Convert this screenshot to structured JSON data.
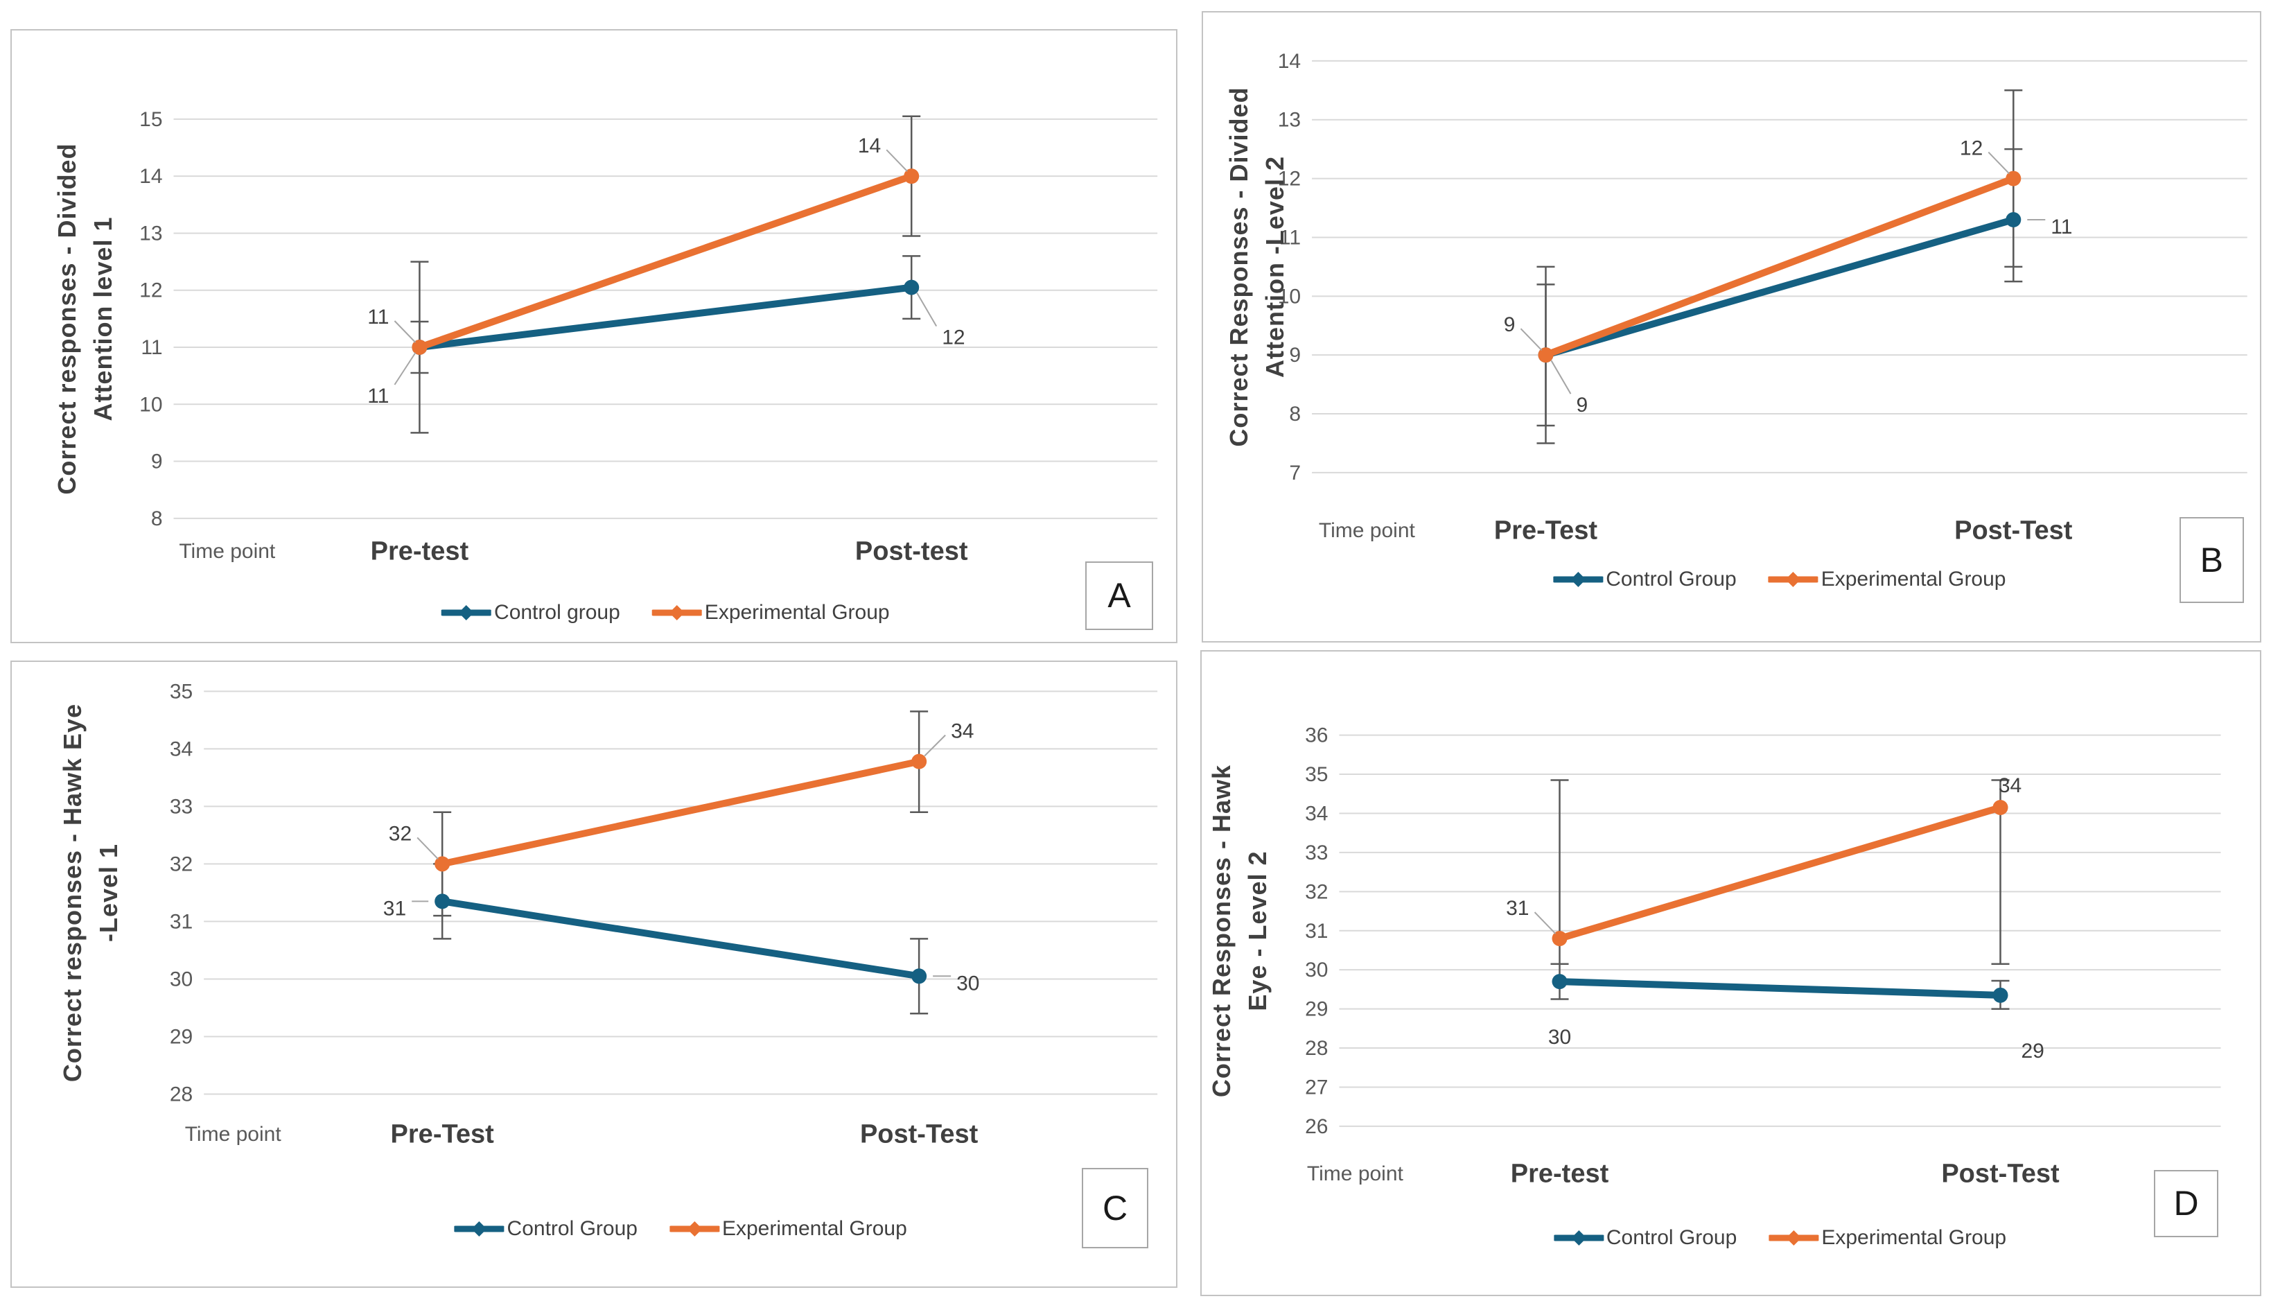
{
  "colors": {
    "control": "#156082",
    "experimental": "#E97132",
    "gridline": "#d9d9d9",
    "error_bar": "#595959",
    "tick_text": "#595959",
    "label_text": "#404040",
    "panel_border": "#c3c3c3",
    "leader_line": "#a6a6a6"
  },
  "chart_data": [
    {
      "id": "A",
      "panel_label": "A",
      "type": "line",
      "y_title": "Correct responses  - Divided Attention  level 1",
      "y_title_lines": [
        "Correct responses  - Divided",
        "Attention  level 1"
      ],
      "x_title": "Time point",
      "categories": [
        "Pre-test",
        "Post-test"
      ],
      "ylim": [
        8,
        15
      ],
      "ytick_step": 1,
      "grid": true,
      "legend_position": "bottom",
      "series": [
        {
          "name": "Control group",
          "color_key": "control",
          "values": [
            11,
            12.05
          ],
          "data_labels": [
            "11",
            "12"
          ],
          "error_bars": [
            [
              10.55,
              11.45
            ],
            [
              11.5,
              12.6
            ]
          ],
          "label_placements": [
            "below-left-leader",
            "below-right-leader"
          ]
        },
        {
          "name": "Experimental Group",
          "color_key": "experimental",
          "values": [
            11,
            14
          ],
          "data_labels": [
            "11",
            "14"
          ],
          "error_bars": [
            [
              9.5,
              12.5
            ],
            [
              12.95,
              15.05
            ]
          ],
          "label_placements": [
            "above-left-leader",
            "above-left-leader"
          ]
        }
      ]
    },
    {
      "id": "B",
      "panel_label": "B",
      "type": "line",
      "y_title": "Correct Responses - Divided Attention -Level 2",
      "y_title_lines": [
        "Correct Responses - Divided",
        "Attention -Level 2"
      ],
      "x_title": "Time point",
      "categories": [
        "Pre-Test",
        "Post-Test"
      ],
      "ylim": [
        7,
        14
      ],
      "ytick_step": 1,
      "grid": true,
      "legend_position": "bottom",
      "series": [
        {
          "name": "Control Group",
          "color_key": "control",
          "values": [
            9,
            11.3
          ],
          "data_labels": [
            "9",
            "11"
          ],
          "error_bars": [
            [
              7.8,
              10.2
            ],
            [
              10.25,
              12.5
            ]
          ],
          "label_placements": [
            "below-right-leader",
            "right-dash"
          ]
        },
        {
          "name": "Experimental Group",
          "color_key": "experimental",
          "values": [
            9,
            12
          ],
          "data_labels": [
            "9",
            "12"
          ],
          "error_bars": [
            [
              7.5,
              10.5
            ],
            [
              10.5,
              13.5
            ]
          ],
          "label_placements": [
            "above-left-leader",
            "above-left-leader"
          ]
        }
      ]
    },
    {
      "id": "C",
      "panel_label": "C",
      "type": "line",
      "y_title": "Correct responses - Hawk Eye -Level 1",
      "y_title_lines": [
        "Correct responses - Hawk Eye",
        "-Level 1"
      ],
      "x_title": "Time point",
      "categories": [
        "Pre-Test",
        "Post-Test"
      ],
      "ylim": [
        28,
        35
      ],
      "ytick_step": 1,
      "grid": true,
      "legend_position": "bottom",
      "series": [
        {
          "name": "Control Group",
          "color_key": "control",
          "values": [
            31.35,
            30.05
          ],
          "data_labels": [
            "31",
            "30"
          ],
          "error_bars": [
            [
              30.7,
              32.0
            ],
            [
              29.4,
              30.7
            ]
          ],
          "label_placements": [
            "left-dash",
            "right-dash"
          ]
        },
        {
          "name": "Experimental Group",
          "color_key": "experimental",
          "values": [
            32,
            33.78
          ],
          "data_labels": [
            "32",
            "34"
          ],
          "error_bars": [
            [
              31.1,
              32.9
            ],
            [
              32.9,
              34.65
            ]
          ],
          "label_placements": [
            "above-left-leader",
            "above-right-leader"
          ]
        }
      ]
    },
    {
      "id": "D",
      "panel_label": "D",
      "type": "line",
      "y_title": "Correct Responses - Hawk Eye - Level 2",
      "y_title_lines": [
        "Correct Responses - Hawk",
        "Eye - Level 2"
      ],
      "x_title": "Time point",
      "categories": [
        "Pre-test",
        "Post-Test"
      ],
      "ylim": [
        26,
        36
      ],
      "ytick_step": 1,
      "grid": true,
      "legend_position": "bottom",
      "series": [
        {
          "name": "Control Group",
          "color_key": "control",
          "values": [
            29.7,
            29.35
          ],
          "data_labels": [
            "30",
            "29"
          ],
          "error_bars": [
            [
              29.25,
              30.15
            ],
            [
              29.0,
              29.72
            ]
          ],
          "label_placements": [
            "below",
            "below-right"
          ]
        },
        {
          "name": "Experimental Group",
          "color_key": "experimental",
          "values": [
            30.8,
            34.15
          ],
          "data_labels": [
            "31",
            "34"
          ],
          "error_bars": [
            [
              30.15,
              34.85
            ],
            [
              30.15,
              34.85
            ]
          ],
          "label_placements": [
            "above-left-leader",
            "above"
          ]
        }
      ]
    }
  ]
}
